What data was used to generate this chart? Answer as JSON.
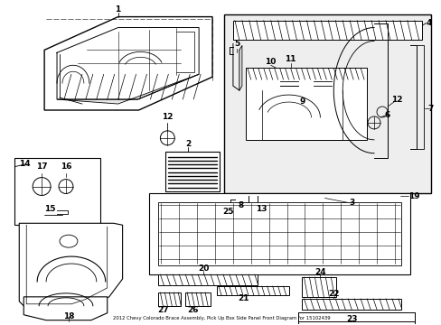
{
  "background_color": "#ffffff",
  "fig_width": 4.89,
  "fig_height": 3.6,
  "dpi": 100,
  "lc": "#000000",
  "fs": 6.5,
  "title": "2012 Chevy Colorado Brace Assembly, Pick Up Box Side Panel Front Diagram for 15102439"
}
